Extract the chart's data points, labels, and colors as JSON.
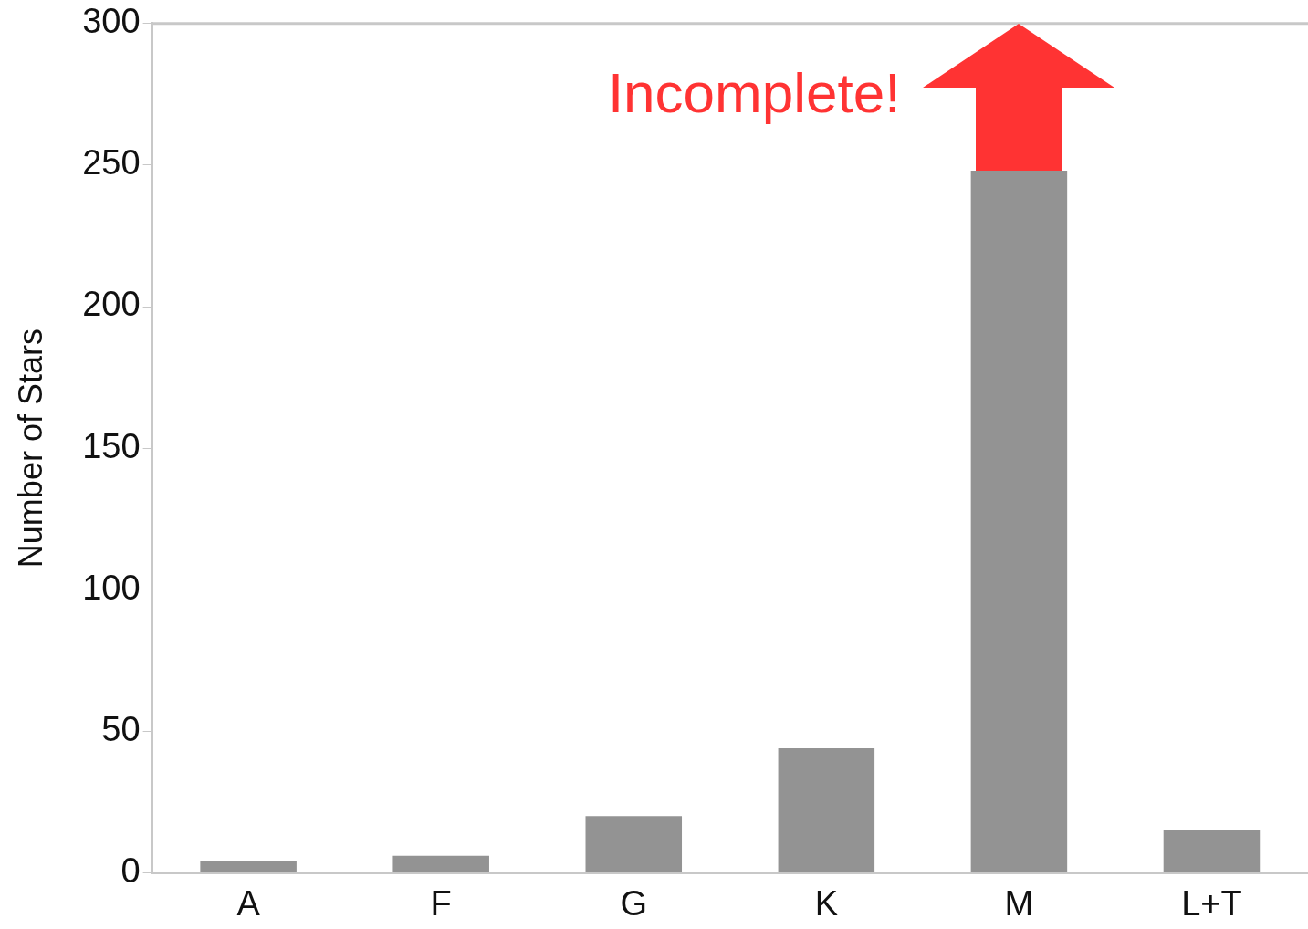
{
  "chart_data": {
    "type": "bar",
    "ylabel": "Number of Stars",
    "categories": [
      "A",
      "F",
      "G",
      "K",
      "M",
      "L+T"
    ],
    "values": [
      4,
      6,
      20,
      44,
      248,
      15
    ],
    "color": "#939393",
    "ylim": [
      0,
      300
    ],
    "yticks": [
      0,
      50,
      100,
      150,
      200,
      250,
      300
    ],
    "grid": false,
    "legend": false,
    "annotations": [
      "Incomplete!"
    ]
  }
}
